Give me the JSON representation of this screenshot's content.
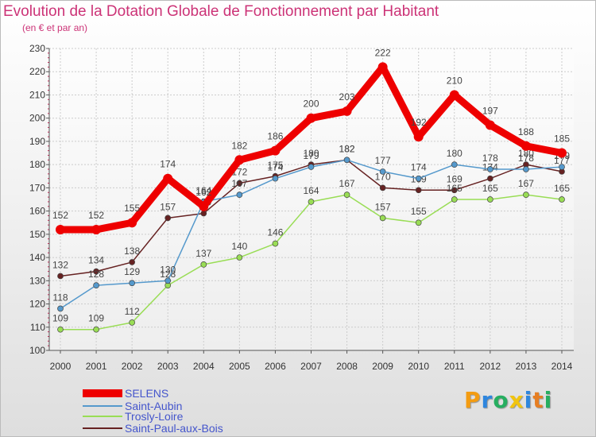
{
  "title": "Evolution de la Dotation Globale de Fonctionnement par Habitant",
  "subtitle": "(en € et par an)",
  "logo": "Proxiti",
  "chart_data": {
    "type": "line",
    "title": "Evolution de la Dotation Globale de Fonctionnement par Habitant",
    "ylabel": "(en € et par an)",
    "xlabel": "",
    "x": [
      2000,
      2001,
      2002,
      2003,
      2004,
      2005,
      2006,
      2007,
      2008,
      2009,
      2010,
      2011,
      2012,
      2013,
      2014
    ],
    "ylim": [
      100,
      230
    ],
    "yticks": [
      100,
      110,
      120,
      130,
      140,
      150,
      160,
      170,
      180,
      190,
      200,
      210,
      220,
      230
    ],
    "grid": true,
    "legend": "bottom-left",
    "series": [
      {
        "name": "SELENS",
        "color": "#ee0000",
        "values": [
          152,
          152,
          155,
          174,
          162,
          182,
          186,
          200,
          203,
          222,
          192,
          210,
          197,
          188,
          185
        ]
      },
      {
        "name": "Saint-Aubin",
        "color": "#5599cc",
        "values": [
          118,
          128,
          129,
          130,
          164,
          167,
          174,
          179,
          182,
          177,
          174,
          180,
          178,
          178,
          179
        ]
      },
      {
        "name": "Trosly-Loire",
        "color": "#99dd55",
        "values": [
          109,
          109,
          112,
          128,
          137,
          140,
          146,
          164,
          167,
          157,
          155,
          165,
          165,
          167,
          165
        ]
      },
      {
        "name": "Saint-Paul-aux-Bois",
        "color": "#662222",
        "values": [
          132,
          134,
          138,
          157,
          159,
          172,
          175,
          180,
          182,
          170,
          169,
          169,
          174,
          180,
          177
        ]
      }
    ]
  }
}
